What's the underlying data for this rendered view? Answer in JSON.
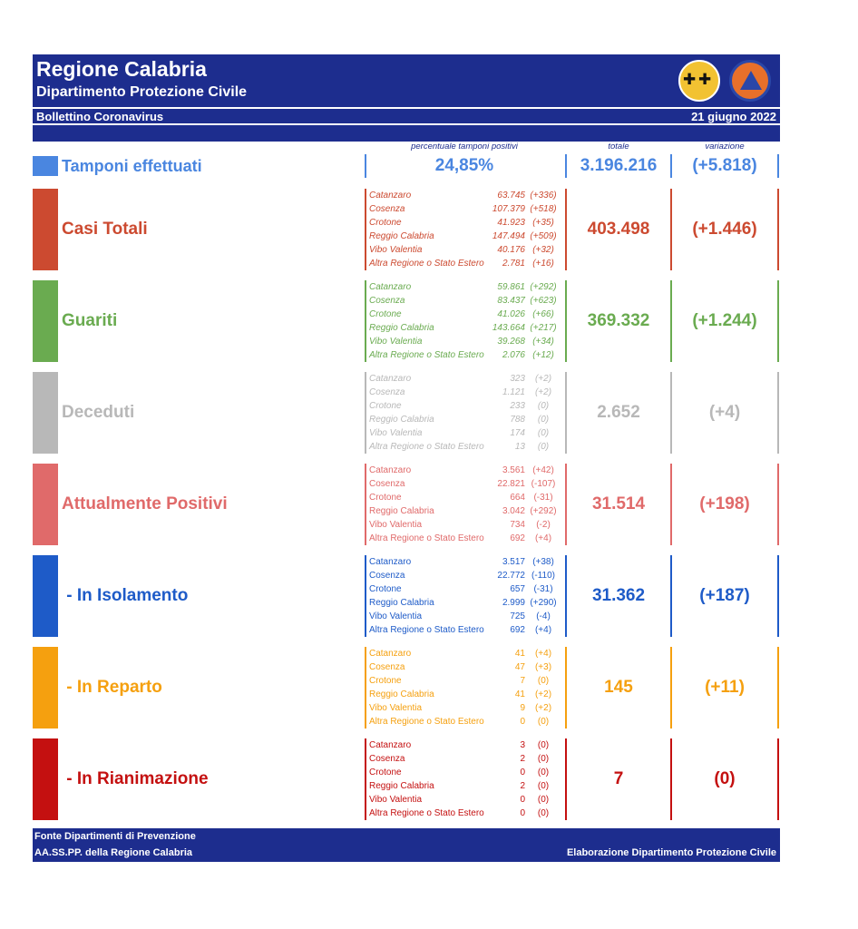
{
  "header": {
    "title": "Regione Calabria",
    "subtitle": "Dipartimento Protezione Civile",
    "bulletin": "Bollettino Coronavirus",
    "date": "21 giugno 2022"
  },
  "columns": {
    "positivity": "percentuale tamponi positivi",
    "total": "totale",
    "variation": "variazione"
  },
  "tamponi": {
    "label": "Tamponi effettuati",
    "positivity": "24,85%",
    "total": "3.196.216",
    "variation": "(+5.818)",
    "color": "#4a86e0"
  },
  "sections": [
    {
      "label": "Casi Totali",
      "total": "403.498",
      "variation": "(+1.446)",
      "color": "#cc4a30",
      "italic": true,
      "rows": [
        {
          "province": "Catanzaro",
          "value": "63.745",
          "delta": "(+336)"
        },
        {
          "province": "Cosenza",
          "value": "107.379",
          "delta": "(+518)"
        },
        {
          "province": "Crotone",
          "value": "41.923",
          "delta": "(+35)"
        },
        {
          "province": "Reggio Calabria",
          "value": "147.494",
          "delta": "(+509)"
        },
        {
          "province": "Vibo Valentia",
          "value": "40.176",
          "delta": "(+32)"
        },
        {
          "province": "Altra Regione o Stato Estero",
          "value": "2.781",
          "delta": "(+16)"
        }
      ]
    },
    {
      "label": "Guariti",
      "total": "369.332",
      "variation": "(+1.244)",
      "color": "#6aab50",
      "italic": true,
      "rows": [
        {
          "province": "Catanzaro",
          "value": "59.861",
          "delta": "(+292)"
        },
        {
          "province": "Cosenza",
          "value": "83.437",
          "delta": "(+623)"
        },
        {
          "province": "Crotone",
          "value": "41.026",
          "delta": "(+66)"
        },
        {
          "province": "Reggio Calabria",
          "value": "143.664",
          "delta": "(+217)"
        },
        {
          "province": "Vibo Valentia",
          "value": "39.268",
          "delta": "(+34)"
        },
        {
          "province": "Altra Regione o Stato Estero",
          "value": "2.076",
          "delta": "(+12)"
        }
      ]
    },
    {
      "label": "Deceduti",
      "total": "2.652",
      "variation": "(+4)",
      "color": "#b8b8b8",
      "italic": true,
      "rows": [
        {
          "province": "Catanzaro",
          "value": "323",
          "delta": "(+2)"
        },
        {
          "province": "Cosenza",
          "value": "1.121",
          "delta": "(+2)"
        },
        {
          "province": "Crotone",
          "value": "233",
          "delta": "(0)"
        },
        {
          "province": "Reggio Calabria",
          "value": "788",
          "delta": "(0)"
        },
        {
          "province": "Vibo Valentia",
          "value": "174",
          "delta": "(0)"
        },
        {
          "province": "Altra Regione o Stato Estero",
          "value": "13",
          "delta": "(0)"
        }
      ]
    },
    {
      "label": "Attualmente Positivi",
      "total": "31.514",
      "variation": "(+198)",
      "color": "#e06a6a",
      "italic": false,
      "rows": [
        {
          "province": "Catanzaro",
          "value": "3.561",
          "delta": "(+42)"
        },
        {
          "province": "Cosenza",
          "value": "22.821",
          "delta": "(-107)"
        },
        {
          "province": "Crotone",
          "value": "664",
          "delta": "(-31)"
        },
        {
          "province": "Reggio Calabria",
          "value": "3.042",
          "delta": "(+292)"
        },
        {
          "province": "Vibo Valentia",
          "value": "734",
          "delta": "(-2)"
        },
        {
          "province": "Altra Regione o Stato Estero",
          "value": "692",
          "delta": "(+4)"
        }
      ]
    },
    {
      "label": " - In Isolamento",
      "total": "31.362",
      "variation": "(+187)",
      "color": "#1e5bc8",
      "italic": false,
      "rows": [
        {
          "province": "Catanzaro",
          "value": "3.517",
          "delta": "(+38)"
        },
        {
          "province": "Cosenza",
          "value": "22.772",
          "delta": "(-110)"
        },
        {
          "province": "Crotone",
          "value": "657",
          "delta": "(-31)"
        },
        {
          "province": "Reggio Calabria",
          "value": "2.999",
          "delta": "(+290)"
        },
        {
          "province": "Vibo Valentia",
          "value": "725",
          "delta": "(-4)"
        },
        {
          "province": "Altra Regione o Stato Estero",
          "value": "692",
          "delta": "(+4)"
        }
      ]
    },
    {
      "label": " - In Reparto",
      "total": "145",
      "variation": "(+11)",
      "color": "#f5a00f",
      "italic": false,
      "rows": [
        {
          "province": "Catanzaro",
          "value": "41",
          "delta": "(+4)"
        },
        {
          "province": "Cosenza",
          "value": "47",
          "delta": "(+3)"
        },
        {
          "province": "Crotone",
          "value": "7",
          "delta": "(0)"
        },
        {
          "province": "Reggio Calabria",
          "value": "41",
          "delta": "(+2)"
        },
        {
          "province": "Vibo Valentia",
          "value": "9",
          "delta": "(+2)"
        },
        {
          "province": "Altra Regione o Stato Estero",
          "value": "0",
          "delta": "(0)"
        }
      ]
    },
    {
      "label": " - In Rianimazione",
      "total": "7",
      "variation": "(0)",
      "color": "#c41010",
      "italic": false,
      "rows": [
        {
          "province": "Catanzaro",
          "value": "3",
          "delta": "(0)"
        },
        {
          "province": "Cosenza",
          "value": "2",
          "delta": "(0)"
        },
        {
          "province": "Crotone",
          "value": "0",
          "delta": "(0)"
        },
        {
          "province": "Reggio Calabria",
          "value": "2",
          "delta": "(0)"
        },
        {
          "province": "Vibo Valentia",
          "value": "0",
          "delta": "(0)"
        },
        {
          "province": "Altra Regione o Stato Estero",
          "value": "0",
          "delta": "(0)"
        }
      ]
    }
  ],
  "footer": {
    "source_line1": "Fonte Dipartimenti di Prevenzione",
    "source_line2": "AA.SS.PP.  della Regione Calabria",
    "credit": "Elaborazione Dipartimento Protezione Civile"
  }
}
